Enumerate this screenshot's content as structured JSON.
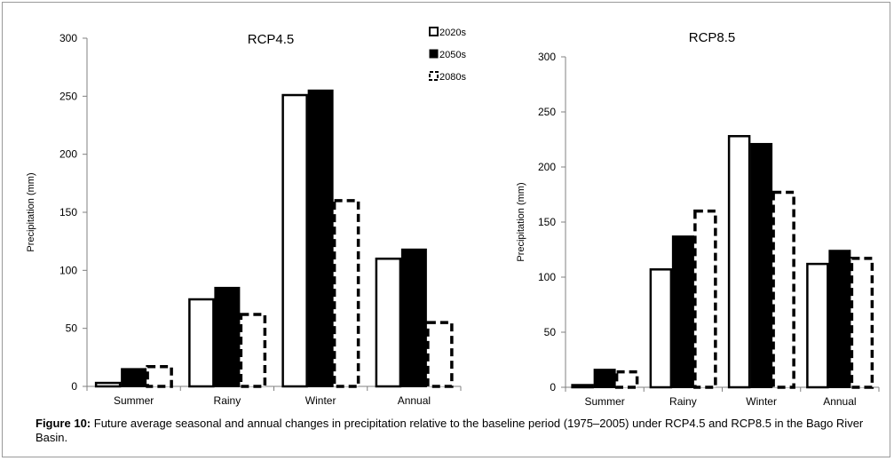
{
  "caption": {
    "label": "Figure 10:",
    "text": "Future average seasonal and annual changes in precipitation relative to the baseline period (1975–2005) under RCP4.5 and RCP8.5 in the Bago River Basin."
  },
  "legend": [
    "2020s",
    "2050s",
    "2080s"
  ],
  "chart_data": [
    {
      "type": "bar",
      "title": "RCP4.5",
      "ylabel": "Precipitation (mm)",
      "xlabel": "",
      "ylim": [
        0,
        300
      ],
      "yticks": [
        0,
        50,
        100,
        150,
        200,
        250,
        300
      ],
      "categories": [
        "Summer",
        "Rainy",
        "Winter",
        "Annual"
      ],
      "series": [
        {
          "name": "2020s",
          "values": [
            3,
            75,
            251,
            110
          ]
        },
        {
          "name": "2050s",
          "values": [
            15,
            85,
            255,
            118
          ]
        },
        {
          "name": "2080s",
          "values": [
            17,
            62,
            160,
            55
          ]
        }
      ]
    },
    {
      "type": "bar",
      "title": "RCP8.5",
      "ylabel": "Precipitation (mm)",
      "xlabel": "",
      "ylim": [
        0,
        300
      ],
      "yticks": [
        0,
        50,
        100,
        150,
        200,
        250,
        300
      ],
      "categories": [
        "Summer",
        "Rainy",
        "Winter",
        "Annual"
      ],
      "series": [
        {
          "name": "2020s",
          "values": [
            2,
            107,
            228,
            112
          ]
        },
        {
          "name": "2050s",
          "values": [
            16,
            137,
            221,
            124
          ]
        },
        {
          "name": "2080s",
          "values": [
            14,
            160,
            177,
            117
          ]
        }
      ]
    }
  ]
}
